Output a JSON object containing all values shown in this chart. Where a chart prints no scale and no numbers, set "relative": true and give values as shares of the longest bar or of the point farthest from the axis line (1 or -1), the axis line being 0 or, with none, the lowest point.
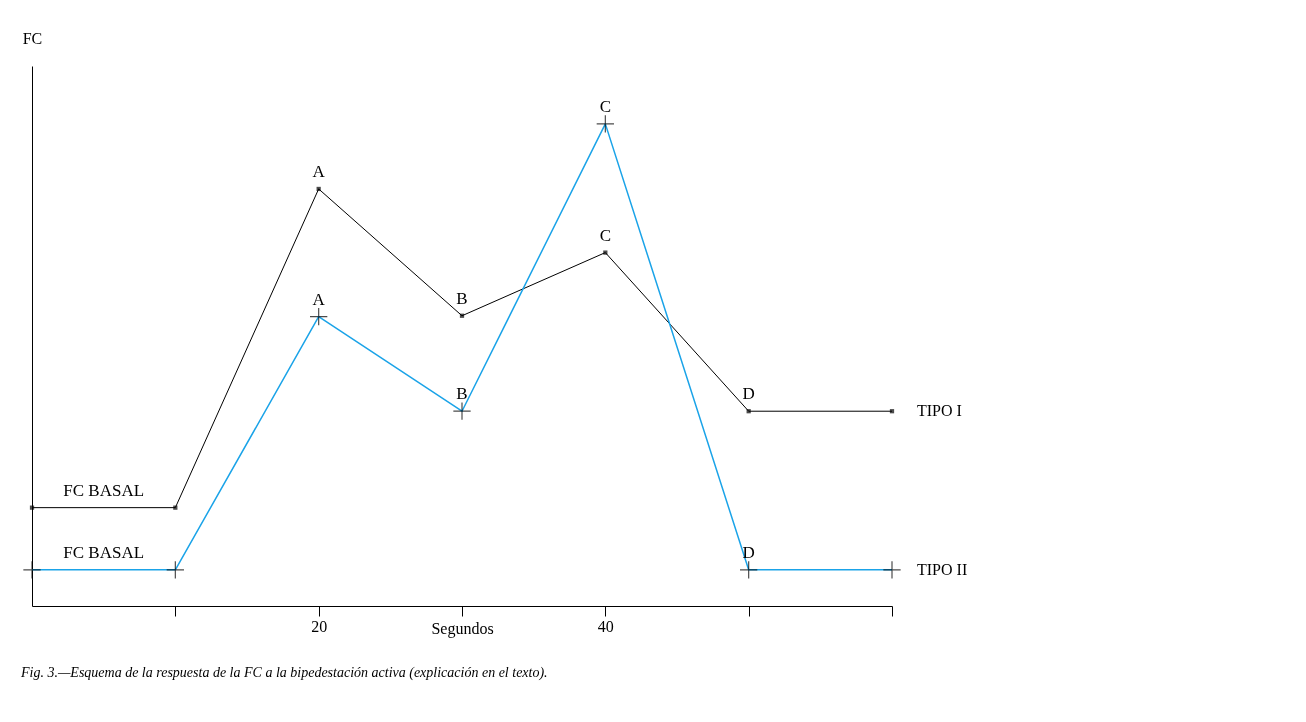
{
  "chart_data": {
    "type": "line",
    "relative": true,
    "ylabel": "FC",
    "xlabel": "Segundos",
    "x": [
      0,
      10,
      20,
      30,
      40,
      50,
      60
    ],
    "xlim": [
      0,
      60
    ],
    "xticks": [
      {
        "value": 10,
        "label": null
      },
      20,
      {
        "value": 30,
        "label": null
      },
      40,
      {
        "value": 50,
        "label": null
      },
      {
        "value": 60,
        "label": null
      }
    ],
    "series": [
      {
        "name": "TIPO I",
        "color": "#000000",
        "marker": "square",
        "values": [
          0.204,
          0.204,
          0.865,
          0.602,
          0.733,
          0.404,
          0.404
        ]
      },
      {
        "name": "TIPO II",
        "color": "#1aa3e8",
        "marker": "cross",
        "values": [
          0.075,
          0.075,
          0.6,
          0.404,
          1,
          0.075,
          0.075
        ]
      }
    ],
    "annotations": [
      {
        "text": "FC BASAL",
        "x": 5,
        "y": 0.204
      },
      {
        "text": "A",
        "x": 20,
        "y": 0.865
      },
      {
        "text": "B",
        "x": 30,
        "y": 0.602
      },
      {
        "text": "C",
        "x": 40,
        "y": 0.733
      },
      {
        "text": "D",
        "x": 50,
        "y": 0.404
      },
      {
        "text": "FC BASAL",
        "x": 5,
        "y": 0.075
      },
      {
        "text": "A",
        "x": 20,
        "y": 0.6
      },
      {
        "text": "B",
        "x": 30,
        "y": 0.404
      },
      {
        "text": "C",
        "x": 40,
        "y": 1
      },
      {
        "text": "D",
        "x": 50,
        "y": 0.075
      },
      "Fig. 3.—Esquema de la respuesta de la FC a la bipedestación activa (explicación en el texto)."
    ],
    "grid": false
  }
}
